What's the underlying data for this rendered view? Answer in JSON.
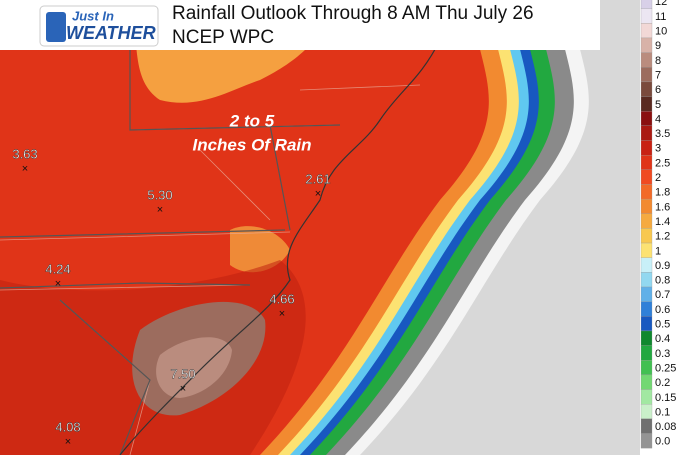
{
  "header": {
    "logo_top": "Just In",
    "logo_bottom": "WEATHER",
    "title": "Rainfall Outlook Through 8 AM Thu July 26",
    "subtitle": "NCEP WPC"
  },
  "annotation": {
    "line1": "2 to 5",
    "line2": "Inches Of Rain"
  },
  "points": [
    "3.63",
    "5.30",
    "2.61",
    "4.24",
    "4.66",
    "7.50",
    "4.08"
  ],
  "legend": [
    {
      "label": "12",
      "color": "#d8d0e8"
    },
    {
      "label": "11",
      "color": "#ece6f2"
    },
    {
      "label": "10",
      "color": "#f2d8d6"
    },
    {
      "label": "9",
      "color": "#d8b2a8"
    },
    {
      "label": "8",
      "color": "#ba8c7e"
    },
    {
      "label": "7",
      "color": "#9c6c5e"
    },
    {
      "label": "6",
      "color": "#7a4a3c"
    },
    {
      "label": "5",
      "color": "#5a2a20"
    },
    {
      "label": "4",
      "color": "#8a1010"
    },
    {
      "label": "3.5",
      "color": "#aa1a12"
    },
    {
      "label": "3",
      "color": "#c82214"
    },
    {
      "label": "2.5",
      "color": "#e03418"
    },
    {
      "label": "2",
      "color": "#f04a22"
    },
    {
      "label": "1.8",
      "color": "#f26a28"
    },
    {
      "label": "1.6",
      "color": "#f28a30"
    },
    {
      "label": "1.4",
      "color": "#f5aa40"
    },
    {
      "label": "1.2",
      "color": "#f8c850"
    },
    {
      "label": "1",
      "color": "#fce272"
    },
    {
      "label": "0.9",
      "color": "#c8f0f8"
    },
    {
      "label": "0.8",
      "color": "#92d8f0"
    },
    {
      "label": "0.7",
      "color": "#60b0e8"
    },
    {
      "label": "0.6",
      "color": "#3080d8"
    },
    {
      "label": "0.5",
      "color": "#1858c0"
    },
    {
      "label": "0.4",
      "color": "#10882e"
    },
    {
      "label": "0.3",
      "color": "#22a840"
    },
    {
      "label": "0.25",
      "color": "#42c052"
    },
    {
      "label": "0.2",
      "color": "#72d872"
    },
    {
      "label": "0.15",
      "color": "#a2e8a2"
    },
    {
      "label": "0.1",
      "color": "#caf0ca"
    },
    {
      "label": "0.08",
      "color": "#707070"
    },
    {
      "label": "0.0",
      "color": "#949494"
    }
  ]
}
